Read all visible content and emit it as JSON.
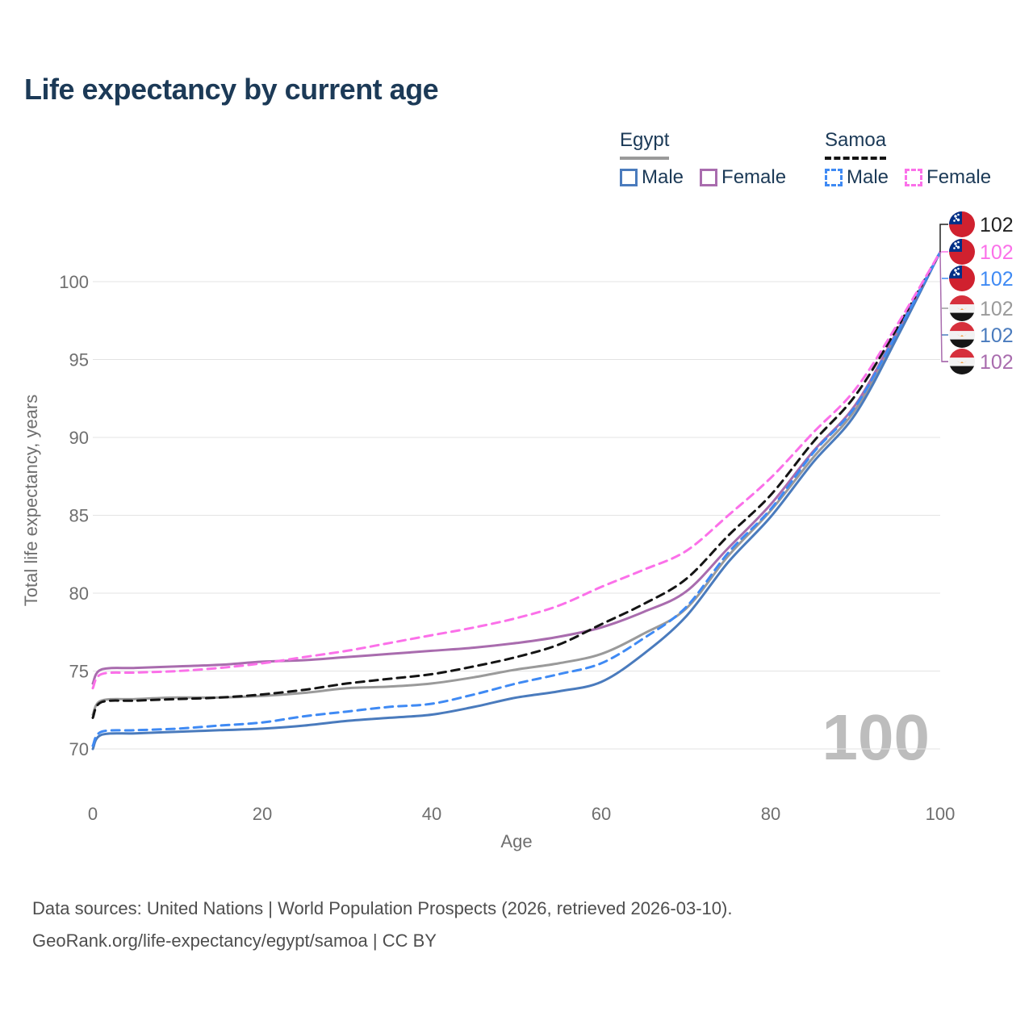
{
  "title": "Life expectancy by current age",
  "legend": {
    "groups": [
      {
        "label": "Egypt",
        "underline_style": "solid",
        "underline_color": "#9a9a9a",
        "items": [
          {
            "label": "Male",
            "color": "#4a7bbd",
            "dash": "solid"
          },
          {
            "label": "Female",
            "color": "#a96cae",
            "dash": "solid"
          }
        ]
      },
      {
        "label": "Samoa",
        "underline_style": "dashed",
        "underline_color": "#141414",
        "items": [
          {
            "label": "Male",
            "color": "#3f8af4",
            "dash": "dashed"
          },
          {
            "label": "Female",
            "color": "#fb70e9",
            "dash": "dashed"
          }
        ]
      }
    ]
  },
  "chart_data": {
    "type": "line",
    "title": "Life expectancy by current age",
    "xlabel": "Age",
    "ylabel": "Total life expectancy, years",
    "x": [
      0,
      1,
      5,
      10,
      15,
      20,
      25,
      30,
      35,
      40,
      45,
      50,
      55,
      60,
      65,
      70,
      75,
      80,
      85,
      90,
      95,
      100
    ],
    "x_ticks": [
      0,
      20,
      40,
      60,
      80,
      100
    ],
    "y_ticks": [
      70,
      75,
      80,
      85,
      90,
      95,
      100
    ],
    "xlim": [
      0,
      100
    ],
    "ylim": [
      70,
      100
    ],
    "grid": "horizontal-only",
    "grid_color": "#e3e3e3",
    "axis_text_color": "#6f6f6f",
    "legend_position": "top-right",
    "series": [
      {
        "name": "Egypt",
        "country": "Egypt",
        "sex": "Both",
        "color": "#9a9a9a",
        "dash": "solid",
        "values": [
          72.2,
          73.1,
          73.2,
          73.3,
          73.3,
          73.4,
          73.6,
          73.9,
          74.0,
          74.2,
          74.6,
          75.1,
          75.5,
          76.1,
          77.4,
          79.0,
          82.4,
          85.3,
          88.7,
          91.8,
          96.7,
          101.9
        ]
      },
      {
        "name": "Egypt Male",
        "country": "Egypt",
        "sex": "Male",
        "color": "#4a7bbd",
        "dash": "solid",
        "values": [
          70.0,
          70.9,
          71.0,
          71.1,
          71.2,
          71.3,
          71.5,
          71.8,
          72.0,
          72.2,
          72.7,
          73.3,
          73.7,
          74.3,
          76.1,
          78.5,
          82.0,
          84.9,
          88.4,
          91.5,
          96.5,
          101.9
        ]
      },
      {
        "name": "Egypt Female",
        "country": "Egypt",
        "sex": "Female",
        "color": "#a96cae",
        "dash": "solid",
        "values": [
          74.2,
          75.1,
          75.2,
          75.3,
          75.4,
          75.6,
          75.7,
          75.9,
          76.1,
          76.3,
          76.5,
          76.8,
          77.2,
          77.8,
          78.8,
          80.1,
          82.9,
          85.7,
          89.1,
          92.1,
          96.9,
          101.9
        ]
      },
      {
        "name": "Samoa",
        "country": "Samoa",
        "sex": "Both",
        "color": "#141414",
        "dash": "dashed",
        "values": [
          72.0,
          73.0,
          73.1,
          73.2,
          73.3,
          73.5,
          73.8,
          74.2,
          74.5,
          74.8,
          75.3,
          75.9,
          76.7,
          78.0,
          79.3,
          80.9,
          83.7,
          86.3,
          89.7,
          92.7,
          97.1,
          101.9
        ]
      },
      {
        "name": "Samoa Male",
        "country": "Samoa",
        "sex": "Male",
        "color": "#3f8af4",
        "dash": "dashed",
        "values": [
          70.2,
          71.1,
          71.2,
          71.3,
          71.5,
          71.7,
          72.1,
          72.4,
          72.7,
          72.9,
          73.5,
          74.2,
          74.8,
          75.5,
          77.1,
          79.1,
          82.6,
          85.4,
          89.0,
          92.0,
          96.8,
          101.9
        ]
      },
      {
        "name": "Samoa Female",
        "country": "Samoa",
        "sex": "Female",
        "color": "#fb70e9",
        "dash": "dashed",
        "values": [
          73.9,
          74.8,
          74.9,
          75.0,
          75.2,
          75.5,
          75.9,
          76.3,
          76.8,
          77.3,
          77.8,
          78.4,
          79.2,
          80.4,
          81.5,
          82.7,
          85.0,
          87.4,
          90.3,
          93.1,
          97.3,
          101.9
        ]
      }
    ],
    "end_labels": [
      {
        "flag": "samoa",
        "value": "102",
        "color": "#222222",
        "series": "Samoa"
      },
      {
        "flag": "samoa",
        "value": "102",
        "color": "#fb70e9",
        "series": "Samoa Female"
      },
      {
        "flag": "samoa",
        "value": "102",
        "color": "#3f8af4",
        "series": "Samoa Male"
      },
      {
        "flag": "egypt",
        "value": "102",
        "color": "#9a9a9a",
        "series": "Egypt"
      },
      {
        "flag": "egypt",
        "value": "102",
        "color": "#4a7bbd",
        "series": "Egypt Male"
      },
      {
        "flag": "egypt",
        "value": "102",
        "color": "#a96cae",
        "series": "Egypt Female"
      }
    ],
    "watermark": "100",
    "flag_colors": {
      "samoa_red": "#d0212f",
      "samoa_blue": "#003087",
      "samoa_star": "#ffffff",
      "egypt_red": "#d6303c",
      "egypt_white": "#f2f2f2",
      "egypt_black": "#161616",
      "egypt_gold": "#f29a3e"
    }
  },
  "footer": {
    "lines": [
      "Data sources: United Nations | World Population Prospects (2026, retrieved 2026-03-10).",
      "GeoRank.org/life-expectancy/egypt/samoa | CC BY"
    ]
  }
}
